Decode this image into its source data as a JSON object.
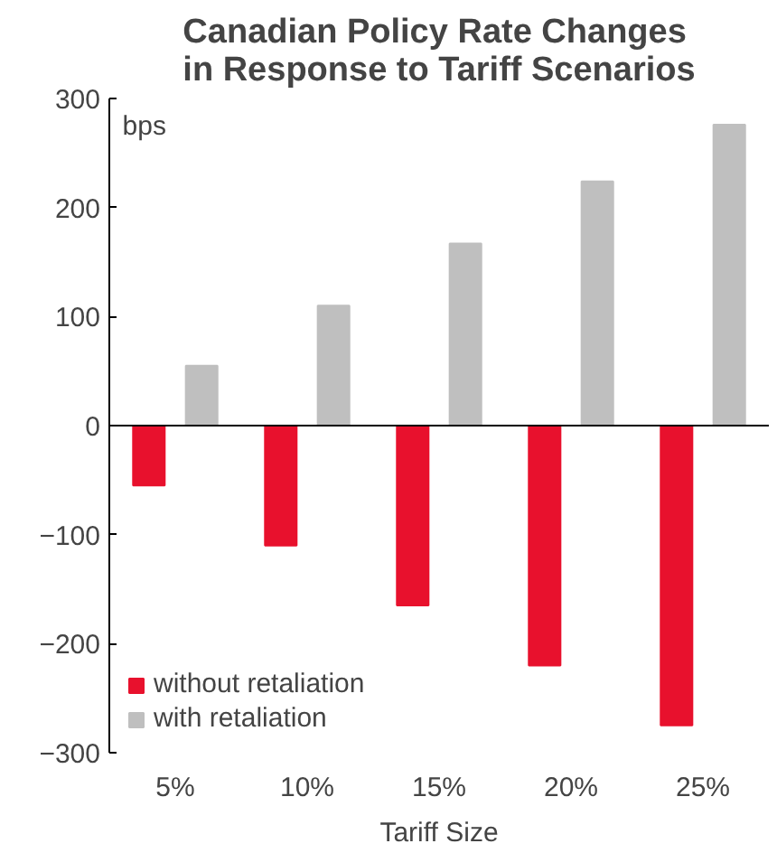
{
  "chart_data": {
    "type": "bar",
    "title": "Canadian Policy Rate Changes\nin Response to Tariff Scenarios",
    "xlabel": "Tariff Size",
    "annotations": [
      "bps"
    ],
    "categories": [
      "5%",
      "10%",
      "15%",
      "20%",
      "25%"
    ],
    "series": [
      {
        "name": "without retaliation",
        "color": "#e8112d",
        "values": [
          -55,
          -110,
          -165,
          -220,
          -275
        ]
      },
      {
        "name": "with retaliation",
        "color": "#bfbfbf",
        "values": [
          55,
          110,
          167,
          224,
          276
        ]
      }
    ],
    "ylim": [
      -300,
      300
    ],
    "yticks": [
      -300,
      -200,
      -100,
      0,
      100,
      200,
      300
    ],
    "grid": false,
    "legend": "bottom left",
    "ref_lines": [
      {
        "axis": "y",
        "value": 0,
        "color": "#000000"
      }
    ]
  }
}
